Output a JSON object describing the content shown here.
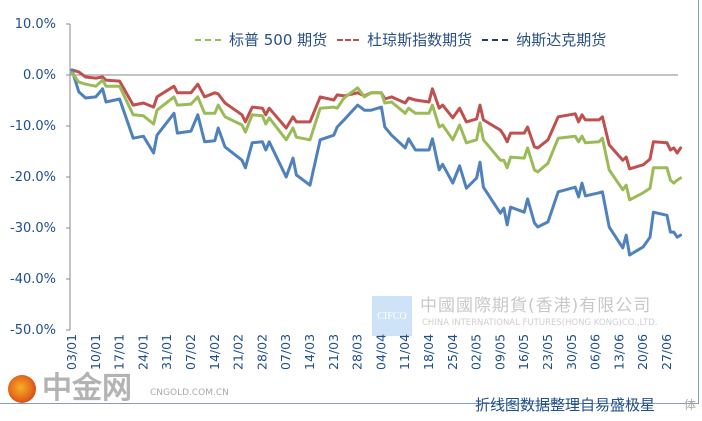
{
  "chart_data": {
    "type": "line",
    "title": "",
    "xlabel": "",
    "ylabel": "",
    "ylim": [
      -50,
      10
    ],
    "yticks": [
      "10.0%",
      "0.0%",
      "-10.0%",
      "-20.0%",
      "-30.0%",
      "-40.0%",
      "-50.0%"
    ],
    "ytick_values": [
      10,
      0,
      -10,
      -20,
      -30,
      -40,
      -50
    ],
    "xticks": [
      "03/01",
      "10/01",
      "17/01",
      "24/01",
      "31/01",
      "07/02",
      "14/02",
      "21/02",
      "28/02",
      "07/03",
      "14/03",
      "21/03",
      "28/03",
      "04/04",
      "11/04",
      "18/04",
      "25/04",
      "02/05",
      "09/05",
      "16/05",
      "23/05",
      "30/05",
      "06/06",
      "13/06",
      "20/06",
      "27/06"
    ],
    "grid": "zero line only",
    "legend_position": "top",
    "x": [
      "01/03",
      "01/05",
      "01/07",
      "01/10",
      "01/12",
      "01/13",
      "01/17",
      "01/21",
      "01/24",
      "01/27",
      "01/28",
      "02/02",
      "02/03",
      "02/07",
      "02/09",
      "02/11",
      "02/14",
      "02/15",
      "02/17",
      "02/22",
      "02/23",
      "02/25",
      "02/28",
      "03/01",
      "03/02",
      "03/07",
      "03/09",
      "03/10",
      "03/14",
      "03/17",
      "03/21",
      "03/22",
      "03/24",
      "03/28",
      "03/30",
      "04/01",
      "04/04",
      "04/05",
      "04/07",
      "04/11",
      "04/12",
      "04/14",
      "04/18",
      "04/19",
      "04/21",
      "04/22",
      "04/25",
      "04/27",
      "04/29",
      "05/02",
      "05/03",
      "05/04",
      "05/09",
      "05/10",
      "05/11",
      "05/12",
      "05/16",
      "05/17",
      "05/19",
      "05/20",
      "05/23",
      "05/26",
      "05/31",
      "06/01",
      "06/02",
      "06/03",
      "06/07",
      "06/08",
      "06/10",
      "06/14",
      "06/15",
      "06/16",
      "06/20",
      "06/22",
      "06/23",
      "06/27",
      "06/28",
      "06/29",
      "06/30",
      "07/01"
    ],
    "series": [
      {
        "name": "标普 500 期货",
        "color": "#9bbb59",
        "values": [
          0.4,
          -1.4,
          -1.8,
          -2.2,
          -1.0,
          -2.2,
          -2.2,
          -7.8,
          -8.0,
          -9.6,
          -6.9,
          -4.3,
          -5.9,
          -5.7,
          -4.3,
          -7.5,
          -7.5,
          -5.9,
          -8.2,
          -9.8,
          -11.2,
          -7.8,
          -8.0,
          -9.6,
          -8.4,
          -12.7,
          -10.4,
          -12.2,
          -12.7,
          -6.5,
          -6.3,
          -6.5,
          -4.5,
          -2.5,
          -4.3,
          -3.5,
          -3.5,
          -5.5,
          -5.3,
          -7.5,
          -6.5,
          -7.5,
          -7.5,
          -5.9,
          -10.2,
          -9.8,
          -12.7,
          -9.8,
          -13.3,
          -12.7,
          -9.4,
          -12.7,
          -16.7,
          -16.7,
          -18.2,
          -16.1,
          -16.3,
          -14.3,
          -18.6,
          -19.0,
          -17.3,
          -12.4,
          -12.0,
          -13.1,
          -12.0,
          -13.3,
          -13.1,
          -12.4,
          -18.6,
          -22.5,
          -21.6,
          -24.5,
          -23.1,
          -22.2,
          -18.2,
          -18.2,
          -20.6,
          -21.2,
          -20.6,
          -20.2
        ]
      },
      {
        "name": "杜琼斯指数期货",
        "color": "#c0504d",
        "values": [
          1.0,
          0.6,
          -0.4,
          -0.6,
          -0.4,
          -1.0,
          -1.2,
          -5.9,
          -5.5,
          -6.3,
          -4.3,
          -2.2,
          -3.5,
          -3.5,
          -1.8,
          -4.3,
          -3.5,
          -3.7,
          -5.5,
          -7.8,
          -9.2,
          -6.3,
          -6.5,
          -7.8,
          -6.5,
          -10.4,
          -8.2,
          -9.2,
          -9.2,
          -4.3,
          -4.9,
          -3.9,
          -4.1,
          -3.5,
          -4.1,
          -3.5,
          -3.5,
          -4.7,
          -4.3,
          -5.5,
          -4.5,
          -4.9,
          -5.3,
          -2.7,
          -6.5,
          -5.9,
          -8.4,
          -6.5,
          -9.2,
          -8.6,
          -5.9,
          -8.8,
          -10.8,
          -11.8,
          -13.1,
          -11.4,
          -11.4,
          -10.2,
          -14.1,
          -14.3,
          -12.7,
          -8.2,
          -7.6,
          -9.2,
          -7.8,
          -8.8,
          -8.8,
          -8.2,
          -13.7,
          -16.7,
          -16.1,
          -18.4,
          -17.6,
          -16.5,
          -13.1,
          -13.3,
          -14.7,
          -14.3,
          -15.3,
          -14.3
        ]
      },
      {
        "name": "纳斯达克期货",
        "color": "#4f81bd",
        "values": [
          1.0,
          -3.3,
          -4.5,
          -4.3,
          -2.7,
          -5.3,
          -4.7,
          -12.4,
          -12.0,
          -15.3,
          -11.8,
          -7.5,
          -11.4,
          -11.0,
          -7.8,
          -13.1,
          -12.9,
          -10.4,
          -14.1,
          -16.7,
          -18.2,
          -13.3,
          -13.1,
          -14.7,
          -13.1,
          -20.0,
          -16.3,
          -19.6,
          -21.6,
          -12.7,
          -11.8,
          -10.2,
          -8.8,
          -5.9,
          -6.9,
          -6.9,
          -6.3,
          -10.2,
          -11.8,
          -14.3,
          -12.5,
          -14.7,
          -14.7,
          -12.5,
          -18.6,
          -17.5,
          -21.2,
          -17.8,
          -22.2,
          -20.2,
          -17.1,
          -22.0,
          -27.1,
          -26.1,
          -29.4,
          -25.9,
          -26.9,
          -24.3,
          -29.0,
          -29.8,
          -28.8,
          -22.9,
          -22.0,
          -23.9,
          -21.2,
          -23.7,
          -23.1,
          -22.9,
          -29.8,
          -33.9,
          -31.4,
          -35.3,
          -33.7,
          -31.8,
          -26.9,
          -27.5,
          -30.8,
          -30.8,
          -31.8,
          -31.4
        ]
      }
    ]
  },
  "legend": [
    "标普 500 期货",
    "杜琼斯指数期货",
    "纳斯达克期货"
  ],
  "watermark": {
    "logo_text": "CIFCO",
    "company_cn": "中國國際期貨(香港)有限公司",
    "company_en": "CHINA INTERNATIONAL FUTURES(HONG KONG)CO.,LTD.",
    "site_logo": "中金网",
    "site_url": "CNGOLD.COM.CN"
  },
  "caption": "折线图数据整理自易盛极星",
  "caption_extra": "体"
}
